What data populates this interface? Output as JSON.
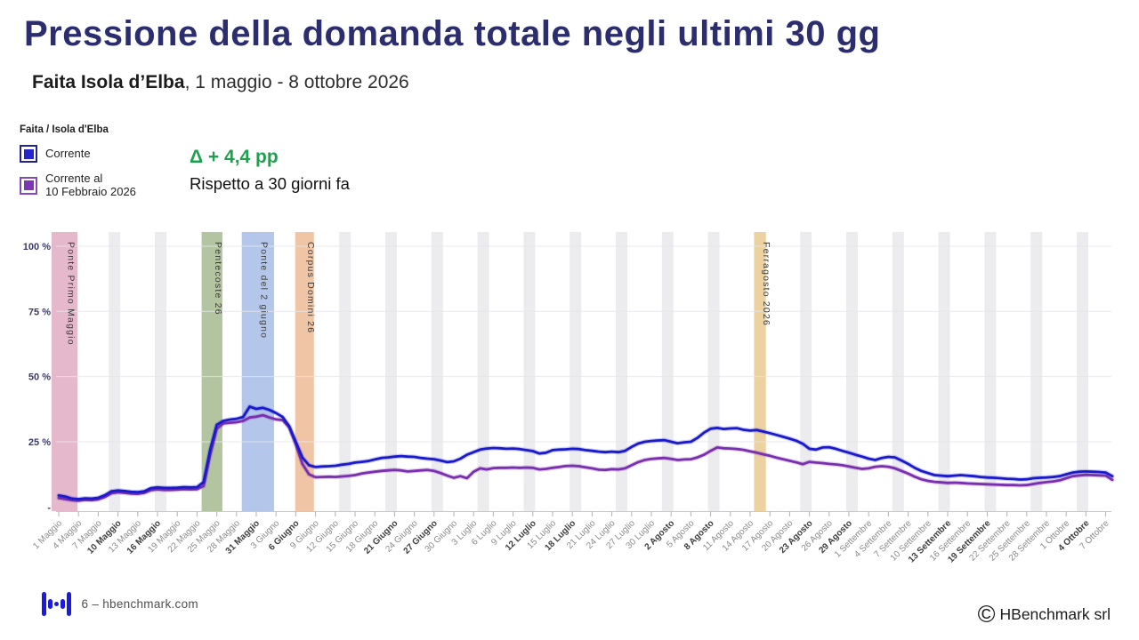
{
  "header": {
    "title": "Pressione della domanda totale negli ultimi 30 gg",
    "subtitle_bold": "Faita Isola d’Elba",
    "subtitle_rest": ", 1 maggio - 8 ottobre 2026"
  },
  "legend": {
    "group_label": "Faita / Isola d'Elba",
    "items": [
      {
        "label": "Corrente",
        "label_line2": "",
        "fill": "#2525d0",
        "border": "#23238f"
      },
      {
        "label": "Corrente al",
        "label_line2": "10 Febbraio 2026",
        "fill": "#7c35b4",
        "border": "#8648bb"
      }
    ]
  },
  "delta": {
    "value": "Δ + 4,4 pp",
    "caption": "Rispetto a 30 giorni fa",
    "color": "#1da14e"
  },
  "footer": {
    "left": "6 – hbenchmark.com",
    "copyright": "©",
    "right": "HBenchmark srl"
  },
  "chart_data": {
    "type": "line",
    "title": "Pressione della domanda totale negli ultimi 30 gg",
    "x_unit": "giorni (offset da 1 Maggio 2026, 1 punto al giorno)",
    "x_days": 161,
    "x_tick_step_days": 3,
    "ylim": [
      0,
      100
    ],
    "grid": "horizontal",
    "y_ticks": [
      {
        "value": 100,
        "label": "100 %"
      },
      {
        "value": 75,
        "label": "75 %"
      },
      {
        "value": 50,
        "label": "50 %"
      },
      {
        "value": 25,
        "label": "25 %"
      },
      {
        "value": 0,
        "label": "-"
      }
    ],
    "x_tick_labels": [
      {
        "label": "1 Maggio",
        "bold": false
      },
      {
        "label": "4 Maggio",
        "bold": false
      },
      {
        "label": "7 Maggio",
        "bold": false
      },
      {
        "label": "10 Maggio",
        "bold": true
      },
      {
        "label": "13 Maggio",
        "bold": false
      },
      {
        "label": "16 Maggio",
        "bold": true
      },
      {
        "label": "19 Maggio",
        "bold": false
      },
      {
        "label": "22 Maggio",
        "bold": false
      },
      {
        "label": "25 Maggio",
        "bold": false
      },
      {
        "label": "28 Maggio",
        "bold": false
      },
      {
        "label": "31 Maggio",
        "bold": true
      },
      {
        "label": "3 Giugno",
        "bold": false
      },
      {
        "label": "6 Giugno",
        "bold": true
      },
      {
        "label": "9 Giugno",
        "bold": false
      },
      {
        "label": "12 Giugno",
        "bold": false
      },
      {
        "label": "15 Giugno",
        "bold": false
      },
      {
        "label": "18 Giugno",
        "bold": false
      },
      {
        "label": "21 Giugno",
        "bold": true
      },
      {
        "label": "24 Giugno",
        "bold": false
      },
      {
        "label": "27 Giugno",
        "bold": true
      },
      {
        "label": "30 Giugno",
        "bold": false
      },
      {
        "label": "3 Luglio",
        "bold": false
      },
      {
        "label": "6 Luglio",
        "bold": false
      },
      {
        "label": "9 Luglio",
        "bold": false
      },
      {
        "label": "12 Luglio",
        "bold": true
      },
      {
        "label": "15 Luglio",
        "bold": false
      },
      {
        "label": "18 Luglio",
        "bold": true
      },
      {
        "label": "21 Luglio",
        "bold": false
      },
      {
        "label": "24 Luglio",
        "bold": false
      },
      {
        "label": "27 Luglio",
        "bold": false
      },
      {
        "label": "30 Luglio",
        "bold": false
      },
      {
        "label": "2 Agosto",
        "bold": true
      },
      {
        "label": "5 Agosto",
        "bold": false
      },
      {
        "label": "8 Agosto",
        "bold": true
      },
      {
        "label": "11 Agosto",
        "bold": false
      },
      {
        "label": "14 Agosto",
        "bold": false
      },
      {
        "label": "17 Agosto",
        "bold": false
      },
      {
        "label": "20 Agosto",
        "bold": false
      },
      {
        "label": "23 Agosto",
        "bold": true
      },
      {
        "label": "26 Agosto",
        "bold": false
      },
      {
        "label": "29 Agosto",
        "bold": true
      },
      {
        "label": "1 Settembre",
        "bold": false
      },
      {
        "label": "4 Settembre",
        "bold": false
      },
      {
        "label": "7 Settembre",
        "bold": false
      },
      {
        "label": "10 Settembre",
        "bold": false
      },
      {
        "label": "13 Settembre",
        "bold": true
      },
      {
        "label": "16 Settembre",
        "bold": false
      },
      {
        "label": "19 Settembre",
        "bold": true
      },
      {
        "label": "22 Settembre",
        "bold": false
      },
      {
        "label": "25 Settembre",
        "bold": false
      },
      {
        "label": "28 Settembre",
        "bold": false
      },
      {
        "label": "1 Ottobre",
        "bold": false
      },
      {
        "label": "4 Ottobre",
        "bold": true
      },
      {
        "label": "7 Ottobre",
        "bold": false
      }
    ],
    "holiday_bands": [
      {
        "label": "Ponte Primo Maggio",
        "day_start": -1.1,
        "day_end": 2.85,
        "color": "#e6b8cc"
      },
      {
        "label": "Pentecoste 26",
        "day_start": 21.7,
        "day_end": 24.85,
        "color": "#b2c5a0"
      },
      {
        "label": "Ponte del 2 giugno",
        "day_start": 27.8,
        "day_end": 32.7,
        "color": "#b4c7ea"
      },
      {
        "label": "Corpus Domini 26",
        "day_start": 35.9,
        "day_end": 38.75,
        "color": "#f0c5a6"
      },
      {
        "label": "Ferragosto 2026",
        "day_start": 105.6,
        "day_end": 107.4,
        "color": "#ecd2a0"
      }
    ],
    "weekend_band_saturdays": [
      8,
      15,
      43,
      50,
      57,
      64,
      71,
      78,
      85,
      92,
      99,
      113,
      120,
      127,
      134,
      141,
      148,
      155
    ],
    "weekend_band_color": "#ececef",
    "series": [
      {
        "name": "Corrente al 10 Febbraio 2026",
        "color": "#7a2fae",
        "values": [
          3.4,
          3.0,
          2.6,
          2.4,
          2.7,
          2.6,
          2.9,
          3.8,
          5.2,
          5.6,
          5.4,
          5.1,
          5.0,
          5.4,
          6.4,
          6.7,
          6.5,
          6.5,
          6.6,
          6.8,
          6.7,
          6.8,
          8.0,
          20.0,
          30.0,
          32.0,
          32.3,
          32.5,
          33.0,
          34.3,
          34.6,
          35.2,
          34.3,
          33.6,
          33.3,
          30.5,
          24.0,
          16.5,
          12.5,
          11.4,
          11.5,
          11.6,
          11.5,
          11.7,
          11.9,
          12.2,
          12.8,
          13.2,
          13.5,
          13.8,
          14.0,
          14.2,
          14.0,
          13.6,
          13.8,
          14.0,
          14.2,
          13.8,
          13.0,
          12.0,
          11.2,
          11.8,
          11.0,
          13.5,
          14.8,
          14.4,
          14.9,
          15.0,
          15.0,
          15.1,
          15.0,
          15.1,
          15.0,
          14.4,
          14.6,
          15.0,
          15.3,
          15.7,
          15.8,
          15.6,
          15.2,
          14.8,
          14.3,
          14.2,
          14.5,
          14.4,
          14.8,
          16.0,
          17.2,
          18.0,
          18.4,
          18.6,
          18.8,
          18.4,
          18.0,
          18.2,
          18.3,
          19.0,
          20.0,
          21.5,
          22.8,
          22.5,
          22.4,
          22.2,
          21.9,
          21.3,
          20.8,
          20.2,
          19.6,
          18.9,
          18.3,
          17.7,
          17.1,
          16.4,
          17.3,
          17.0,
          16.8,
          16.5,
          16.3,
          16.0,
          15.5,
          15.0,
          14.6,
          14.8,
          15.4,
          15.6,
          15.4,
          14.8,
          13.8,
          12.8,
          11.6,
          10.6,
          10.0,
          9.6,
          9.4,
          9.2,
          9.3,
          9.2,
          9.0,
          8.9,
          8.8,
          8.7,
          8.6,
          8.5,
          8.4,
          8.4,
          8.3,
          8.4,
          8.8,
          9.2,
          9.5,
          9.8,
          10.2,
          11.0,
          11.8,
          12.1,
          12.3,
          12.2,
          12.1,
          12.0,
          10.4
        ]
      },
      {
        "name": "Corrente",
        "color": "#1a1acc",
        "values": [
          4.4,
          4.0,
          3.2,
          3.0,
          3.3,
          3.2,
          3.5,
          4.5,
          6.0,
          6.3,
          6.1,
          5.8,
          5.7,
          6.0,
          7.2,
          7.5,
          7.3,
          7.3,
          7.4,
          7.6,
          7.5,
          7.6,
          9.5,
          22.0,
          31.5,
          33.0,
          33.5,
          33.8,
          34.5,
          38.5,
          37.6,
          38.0,
          37.2,
          36.0,
          34.5,
          31.0,
          25.0,
          19.0,
          16.0,
          15.3,
          15.5,
          15.6,
          15.8,
          16.2,
          16.5,
          17.0,
          17.3,
          17.6,
          18.2,
          18.8,
          19.0,
          19.3,
          19.5,
          19.3,
          19.2,
          18.8,
          18.5,
          18.3,
          17.8,
          17.2,
          17.5,
          18.5,
          20.0,
          21.0,
          22.0,
          22.4,
          22.6,
          22.5,
          22.3,
          22.4,
          22.2,
          21.8,
          21.4,
          20.5,
          20.8,
          21.8,
          22.0,
          22.1,
          22.3,
          22.2,
          21.8,
          21.5,
          21.2,
          21.0,
          21.2,
          21.0,
          21.5,
          23.0,
          24.3,
          25.0,
          25.3,
          25.5,
          25.6,
          25.0,
          24.4,
          24.8,
          25.0,
          26.5,
          28.5,
          30.0,
          30.3,
          29.9,
          30.1,
          30.2,
          29.6,
          29.3,
          29.5,
          28.9,
          28.3,
          27.6,
          26.9,
          26.2,
          25.4,
          24.2,
          22.3,
          22.0,
          22.8,
          22.9,
          22.3,
          21.5,
          20.8,
          20.0,
          19.3,
          18.5,
          18.0,
          18.8,
          19.2,
          19.0,
          17.8,
          16.5,
          15.0,
          13.8,
          13.0,
          12.2,
          12.0,
          11.8,
          12.0,
          12.2,
          12.0,
          11.8,
          11.5,
          11.3,
          11.2,
          11.0,
          10.8,
          10.7,
          10.5,
          10.6,
          11.0,
          11.2,
          11.3,
          11.5,
          11.8,
          12.5,
          13.2,
          13.5,
          13.6,
          13.5,
          13.4,
          13.2,
          11.8
        ]
      }
    ]
  }
}
